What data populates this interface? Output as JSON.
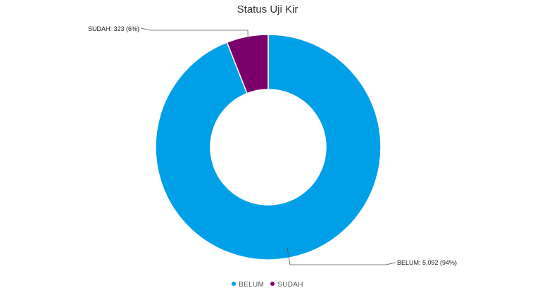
{
  "chart_data": {
    "type": "pie",
    "title": "Status Uji Kir",
    "categories": [
      "BELUM",
      "SUDAH"
    ],
    "values": [
      5092,
      323
    ],
    "percents": [
      94,
      6
    ],
    "colors": [
      "#00A0E9",
      "#7B006B"
    ],
    "data_labels": [
      "BELUM: 5,092 (94%)",
      "SUDAH: 323 (6%)"
    ],
    "donut": true,
    "legend": {
      "position": "bottom",
      "entries": [
        "BELUM",
        "SUDAH"
      ]
    }
  }
}
